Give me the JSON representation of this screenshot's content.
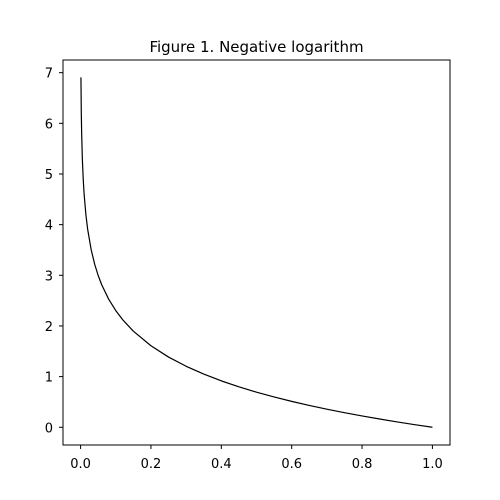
{
  "chart_data": {
    "type": "line",
    "title": "Figure 1. Negative logarithm",
    "xlabel": "",
    "ylabel": "",
    "xlim": [
      -0.05,
      1.05
    ],
    "ylim": [
      -0.35,
      7.25
    ],
    "x_ticks": [
      0.0,
      0.2,
      0.4,
      0.6,
      0.8,
      1.0
    ],
    "x_tick_labels": [
      "0.0",
      "0.2",
      "0.4",
      "0.6",
      "0.8",
      "1.0"
    ],
    "y_ticks": [
      0,
      1,
      2,
      3,
      4,
      5,
      6,
      7
    ],
    "y_tick_labels": [
      "0",
      "1",
      "2",
      "3",
      "4",
      "5",
      "6",
      "7"
    ],
    "grid": false,
    "legend": "none",
    "series": [
      {
        "color": "#000000",
        "function": "-ln(x)",
        "x": [
          0.001,
          0.002,
          0.003,
          0.005,
          0.0075,
          0.01,
          0.015,
          0.02,
          0.03,
          0.04,
          0.05,
          0.06,
          0.08,
          0.1,
          0.12,
          0.15,
          0.2,
          0.25,
          0.3,
          0.35,
          0.4,
          0.45,
          0.5,
          0.55,
          0.6,
          0.65,
          0.7,
          0.75,
          0.8,
          0.85,
          0.9,
          0.95,
          1.0
        ],
        "y": [
          6.908,
          6.215,
          5.809,
          5.298,
          4.893,
          4.605,
          4.2,
          3.912,
          3.507,
          3.219,
          2.996,
          2.813,
          2.526,
          2.303,
          2.12,
          1.897,
          1.609,
          1.386,
          1.204,
          1.05,
          0.916,
          0.799,
          0.693,
          0.598,
          0.511,
          0.431,
          0.357,
          0.288,
          0.223,
          0.163,
          0.105,
          0.051,
          0.0
        ]
      }
    ]
  },
  "colors": {
    "background": "#ffffff",
    "axes": "#000000",
    "line": "#000000"
  }
}
